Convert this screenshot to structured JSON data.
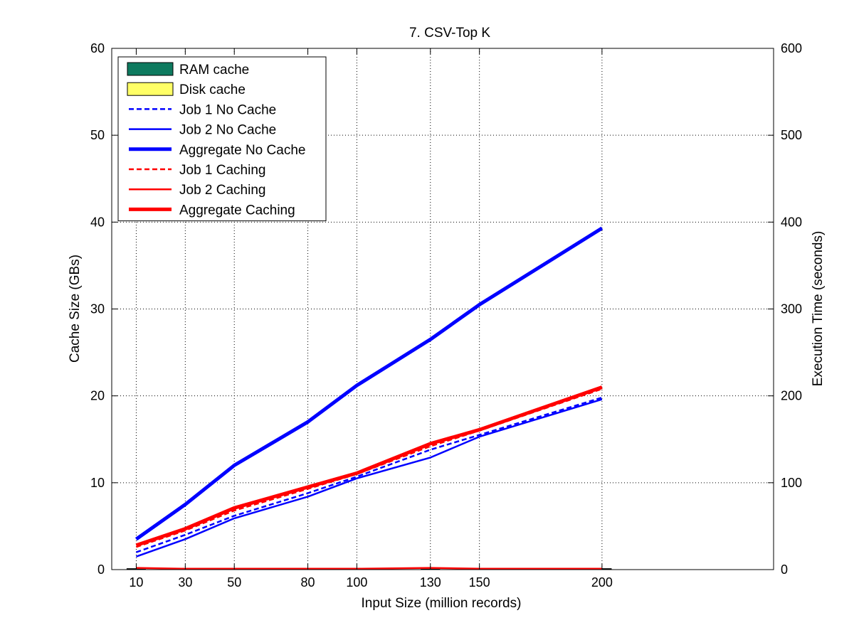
{
  "chart_data": {
    "type": "line",
    "title": "7. CSV-Top K",
    "xlabel": "Input Size (million records)",
    "ylabel": "Cache Size (GBs)",
    "y2label": "Execution Time (seconds)",
    "x_ticks": [
      10,
      30,
      50,
      80,
      100,
      130,
      150,
      200
    ],
    "xlim": [
      0,
      270
    ],
    "ylim": [
      0,
      60
    ],
    "y_ticks": [
      0,
      10,
      20,
      30,
      40,
      50,
      60
    ],
    "y2lim": [
      0,
      600
    ],
    "y2_ticks": [
      0,
      100,
      200,
      300,
      400,
      500,
      600
    ],
    "grid": true,
    "legend_position": "top-left",
    "x": [
      10,
      30,
      50,
      80,
      100,
      130,
      150,
      200
    ],
    "bars": [
      {
        "name": "RAM cache",
        "color": "#0e7a5f",
        "values": [
          0.1,
          0.05,
          0.1,
          0.1,
          0.05,
          0.1,
          0.05,
          0.1
        ]
      },
      {
        "name": "Disk cache",
        "color": "#ffff66",
        "values": [
          0,
          0,
          0,
          0,
          0,
          0,
          0,
          0
        ]
      }
    ],
    "series": [
      {
        "name": "Job 1 No Cache",
        "color": "#0000ff",
        "style": "dashed",
        "width": 2.5,
        "axis": "right",
        "values": [
          20,
          40,
          62,
          88,
          107,
          138,
          155,
          198
        ]
      },
      {
        "name": "Job 2 No Cache",
        "color": "#0000ff",
        "style": "solid",
        "width": 2.5,
        "axis": "right",
        "values": [
          15,
          35,
          59,
          84,
          105,
          129,
          153,
          196
        ]
      },
      {
        "name": "Aggregate No Cache",
        "color": "#0000ff",
        "style": "solid",
        "width": 5,
        "axis": "right",
        "values": [
          35,
          75,
          120,
          170,
          212,
          265,
          305,
          393
        ]
      },
      {
        "name": "Job 1 Caching",
        "color": "#ff0000",
        "style": "dashed",
        "width": 2.5,
        "axis": "right",
        "values": [
          26,
          45,
          68,
          93,
          110,
          142,
          160,
          208
        ]
      },
      {
        "name": "Job 2 Caching",
        "color": "#ff0000",
        "style": "solid",
        "width": 2.5,
        "axis": "right",
        "values": [
          2,
          1,
          1,
          1,
          1,
          2,
          1,
          1
        ]
      },
      {
        "name": "Aggregate Caching",
        "color": "#ff0000",
        "style": "solid",
        "width": 5,
        "axis": "right",
        "values": [
          28,
          47,
          71,
          95,
          111,
          145,
          161,
          210
        ]
      }
    ]
  }
}
